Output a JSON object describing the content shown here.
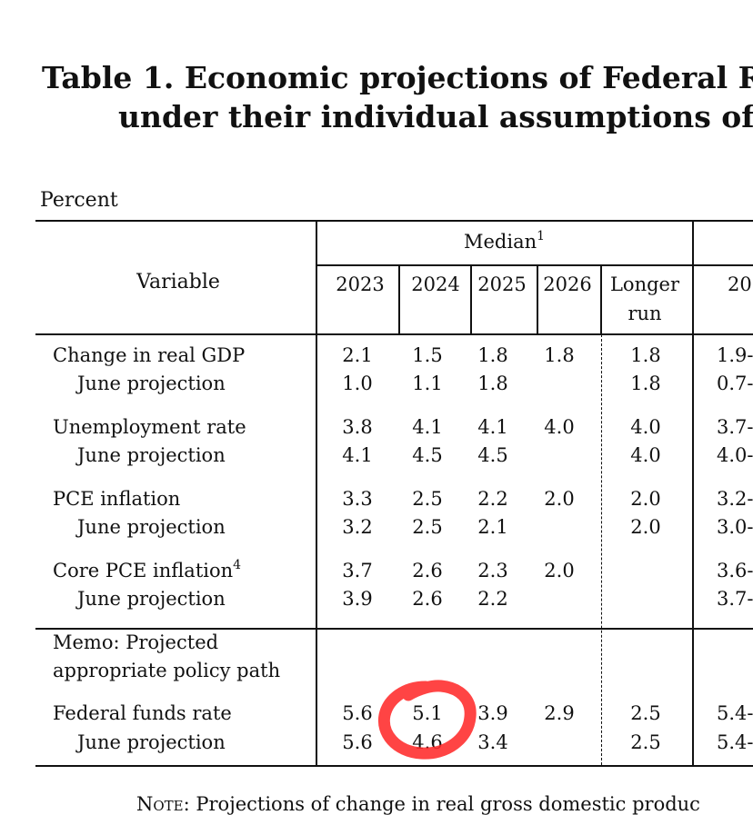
{
  "title_line1": "Table 1. Economic projections of Federal R",
  "title_line2": "under their individual assumptions of",
  "units": "Percent",
  "header": {
    "variable": "Variable",
    "median": "Median",
    "median_sup": "1",
    "years": [
      "2023",
      "2024",
      "2025",
      "2026"
    ],
    "longer_run_1": "Longer",
    "longer_run_2": "run",
    "cut_year": "20"
  },
  "groups": [
    {
      "label": "Change in real GDP",
      "label_sup": "",
      "values": [
        "2.1",
        "1.5",
        "1.8",
        "1.8",
        "1.8"
      ],
      "cut": "1.9-",
      "june_label": "June projection",
      "june_values": [
        "1.0",
        "1.1",
        "1.8",
        "",
        "1.8"
      ],
      "june_cut": "0.7-"
    },
    {
      "label": "Unemployment rate",
      "label_sup": "",
      "values": [
        "3.8",
        "4.1",
        "4.1",
        "4.0",
        "4.0"
      ],
      "cut": "3.7-",
      "june_label": "June projection",
      "june_values": [
        "4.1",
        "4.5",
        "4.5",
        "",
        "4.0"
      ],
      "june_cut": "4.0-"
    },
    {
      "label": "PCE inflation",
      "label_sup": "",
      "values": [
        "3.3",
        "2.5",
        "2.2",
        "2.0",
        "2.0"
      ],
      "cut": "3.2-",
      "june_label": "June projection",
      "june_values": [
        "3.2",
        "2.5",
        "2.1",
        "",
        "2.0"
      ],
      "june_cut": "3.0-"
    },
    {
      "label": "Core PCE inflation",
      "label_sup": "4",
      "values": [
        "3.7",
        "2.6",
        "2.3",
        "2.0",
        ""
      ],
      "cut": "3.6-",
      "june_label": "June projection",
      "june_values": [
        "3.9",
        "2.6",
        "2.2",
        "",
        ""
      ],
      "june_cut": "3.7-"
    }
  ],
  "memo": {
    "line1": "Memo: Projected",
    "line2": "appropriate policy path",
    "fed_label": "Federal funds rate",
    "fed_values": [
      "5.6",
      "5.1",
      "3.9",
      "2.9",
      "2.5"
    ],
    "fed_cut": "5.4-",
    "june_label": "June projection",
    "june_values": [
      "5.6",
      "4.6",
      "3.4",
      "",
      "2.5"
    ],
    "june_cut": "5.4-"
  },
  "note_prefix": "Note",
  "note_text": ": Projections of change in real gross domestic produc",
  "annotation_color": "#ff2a2a"
}
